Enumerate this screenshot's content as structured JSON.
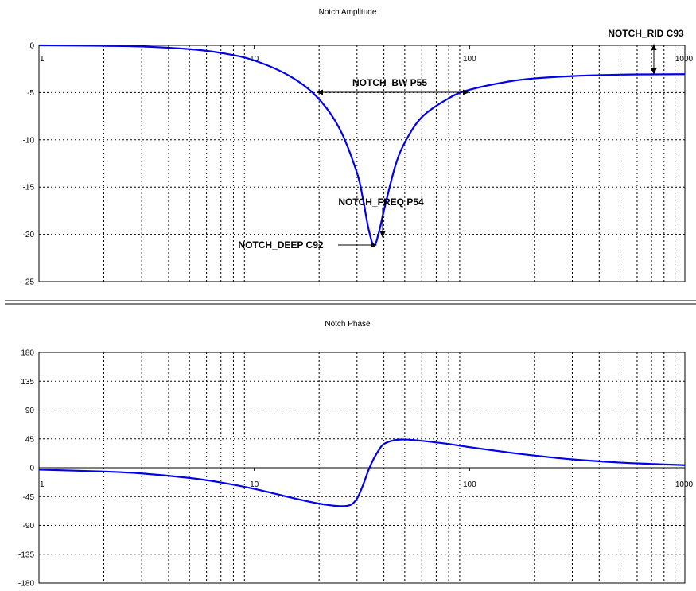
{
  "colors": {
    "curve": "#0000ee",
    "grid": "#000000",
    "background": "#ffffff"
  },
  "chart_data": [
    {
      "type": "line",
      "title": "Notch Amplitude",
      "xlabel": "",
      "ylabel": "",
      "x_scale": "log",
      "xlim": [
        1,
        1000
      ],
      "ylim": [
        -25,
        0
      ],
      "x_tick_labels": [
        "1",
        "10",
        "100",
        "1000"
      ],
      "y_tick_labels": [
        "0",
        "-5",
        "-10",
        "-15",
        "-20",
        "-25"
      ],
      "grid": true,
      "series": [
        {
          "x": [
            1,
            2,
            3,
            5,
            7,
            10,
            15,
            20,
            25,
            30,
            32,
            34,
            36,
            38,
            40,
            45,
            50,
            60,
            80,
            100,
            150,
            200,
            300,
            500,
            700,
            1000
          ],
          "y": [
            0,
            -0.05,
            -0.12,
            -0.4,
            -0.8,
            -1.6,
            -3.4,
            -5.7,
            -8.9,
            -13.5,
            -16.3,
            -19.5,
            -21.2,
            -19.7,
            -17.5,
            -12.9,
            -10.3,
            -7.6,
            -5.6,
            -4.7,
            -3.85,
            -3.5,
            -3.25,
            -3.1,
            -3.07,
            -3.05
          ]
        }
      ],
      "annotations": [
        "NOTCH_BW P55",
        "NOTCH_FREQ P54",
        "NOTCH_DEEP C92",
        "NOTCH_RID C93"
      ]
    },
    {
      "type": "line",
      "title": "Notch Phase",
      "xlabel": "",
      "ylabel": "",
      "x_scale": "log",
      "xlim": [
        1,
        1000
      ],
      "ylim": [
        -180,
        180
      ],
      "x_tick_labels": [
        "1",
        "10",
        "100",
        "1000"
      ],
      "y_tick_labels": [
        "180",
        "135",
        "90",
        "45",
        "0",
        "-45",
        "-90",
        "-135",
        "-180"
      ],
      "grid": true,
      "series": [
        {
          "x": [
            1,
            2,
            3,
            5,
            7,
            10,
            15,
            20,
            25,
            28,
            30,
            32,
            34,
            36,
            38,
            40,
            45,
            50,
            60,
            80,
            100,
            150,
            200,
            300,
            500,
            700,
            1000
          ],
          "y": [
            -3,
            -6,
            -9,
            -16,
            -23,
            -33,
            -47,
            -56,
            -60,
            -58,
            -48,
            -27,
            -3,
            15,
            28,
            37,
            43,
            44,
            42,
            37,
            32,
            24,
            19,
            13,
            8,
            6,
            4
          ]
        }
      ]
    }
  ]
}
